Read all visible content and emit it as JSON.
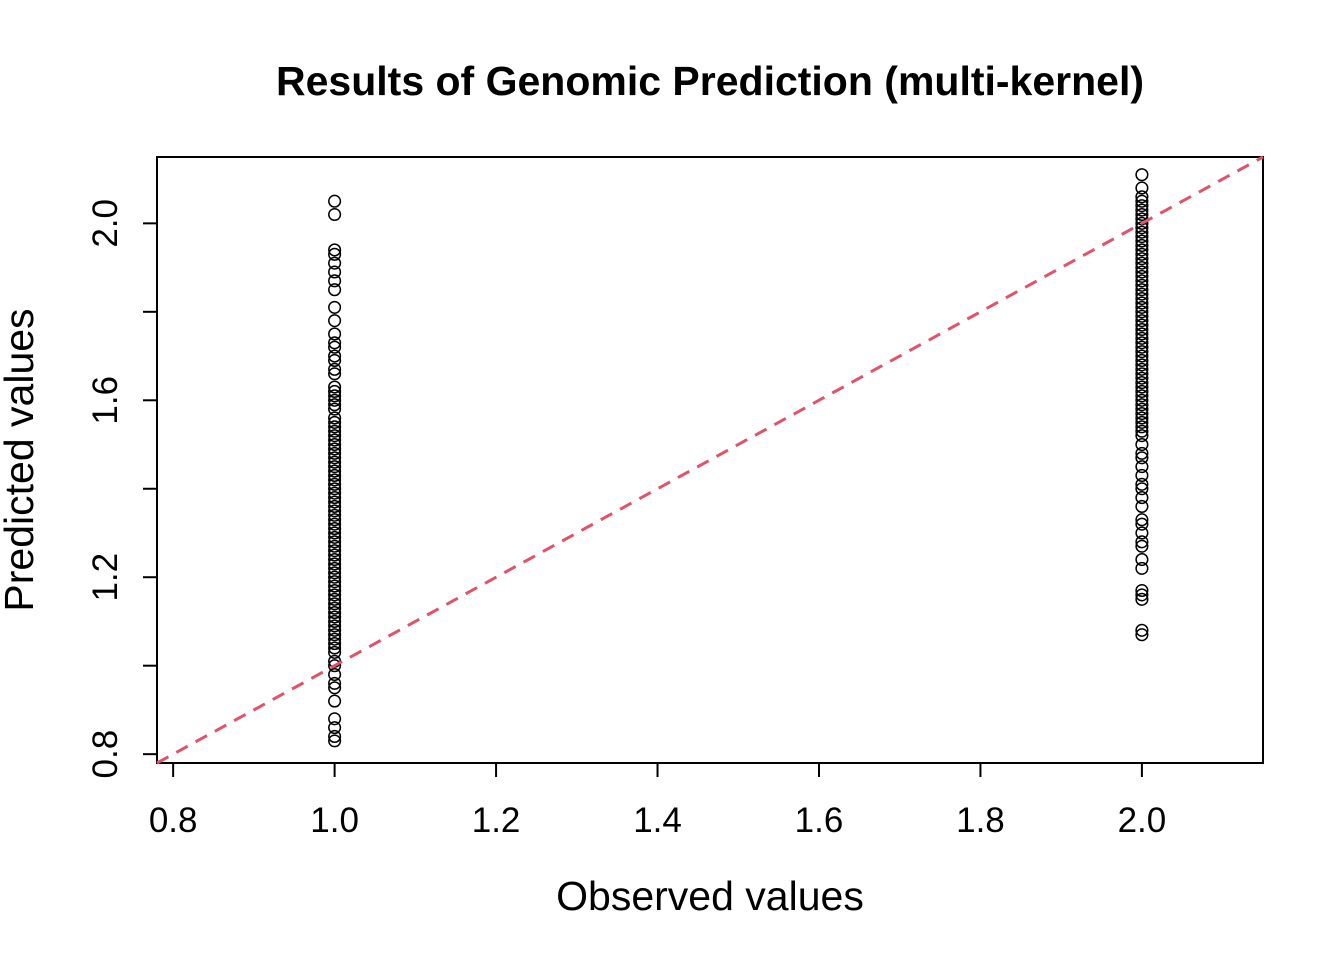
{
  "chart_data": {
    "type": "scatter",
    "title": "Results of Genomic Prediction (multi-kernel)",
    "xlabel": "Observed values",
    "ylabel": "Predicted values",
    "xlim": [
      0.78,
      2.15
    ],
    "ylim": [
      0.78,
      2.15
    ],
    "x_ticks": [
      0.8,
      1.0,
      1.2,
      1.4,
      1.6,
      1.8,
      2.0
    ],
    "x_tick_labels": [
      "0.8",
      "1.0",
      "1.2",
      "1.4",
      "1.6",
      "1.8",
      "2.0"
    ],
    "y_ticks": [
      0.8,
      1.2,
      1.6,
      2.0
    ],
    "y_tick_labels": [
      "0.8",
      "1.2",
      "1.6",
      "2.0"
    ],
    "y_minor_ticks": [
      1.0,
      1.4,
      1.8
    ],
    "grid": false,
    "legend": "none",
    "marker": "open-circle",
    "reference_line": {
      "slope": 1,
      "intercept": 0,
      "style": "dashed",
      "color": "#DF536B"
    },
    "series": [
      {
        "x": 1.0,
        "y": [
          0.83,
          0.84,
          0.86,
          0.88,
          0.92,
          0.95,
          0.96,
          0.98,
          1.0,
          1.01,
          1.03,
          1.04,
          1.05,
          1.06,
          1.07,
          1.08,
          1.09,
          1.1,
          1.11,
          1.12,
          1.13,
          1.14,
          1.15,
          1.16,
          1.17,
          1.18,
          1.19,
          1.2,
          1.21,
          1.22,
          1.23,
          1.24,
          1.25,
          1.26,
          1.27,
          1.28,
          1.29,
          1.3,
          1.31,
          1.32,
          1.33,
          1.34,
          1.35,
          1.36,
          1.37,
          1.38,
          1.39,
          1.4,
          1.41,
          1.42,
          1.43,
          1.44,
          1.45,
          1.46,
          1.47,
          1.48,
          1.49,
          1.5,
          1.51,
          1.52,
          1.53,
          1.54,
          1.55,
          1.56,
          1.58,
          1.59,
          1.6,
          1.61,
          1.62,
          1.63,
          1.66,
          1.67,
          1.69,
          1.7,
          1.72,
          1.73,
          1.75,
          1.78,
          1.81,
          1.85,
          1.87,
          1.89,
          1.91,
          1.93,
          1.94,
          2.02,
          2.05
        ]
      },
      {
        "x": 2.0,
        "y": [
          1.07,
          1.08,
          1.15,
          1.16,
          1.17,
          1.22,
          1.24,
          1.27,
          1.28,
          1.3,
          1.32,
          1.33,
          1.36,
          1.38,
          1.4,
          1.41,
          1.43,
          1.45,
          1.47,
          1.48,
          1.5,
          1.52,
          1.53,
          1.54,
          1.55,
          1.56,
          1.57,
          1.58,
          1.59,
          1.6,
          1.61,
          1.62,
          1.63,
          1.64,
          1.65,
          1.66,
          1.67,
          1.68,
          1.69,
          1.7,
          1.71,
          1.72,
          1.73,
          1.74,
          1.75,
          1.76,
          1.77,
          1.78,
          1.79,
          1.8,
          1.81,
          1.82,
          1.83,
          1.84,
          1.85,
          1.86,
          1.87,
          1.88,
          1.89,
          1.9,
          1.91,
          1.92,
          1.93,
          1.94,
          1.95,
          1.96,
          1.97,
          1.98,
          1.99,
          2.0,
          2.01,
          2.02,
          2.03,
          2.04,
          2.05,
          2.06,
          2.08,
          2.11
        ]
      }
    ]
  }
}
